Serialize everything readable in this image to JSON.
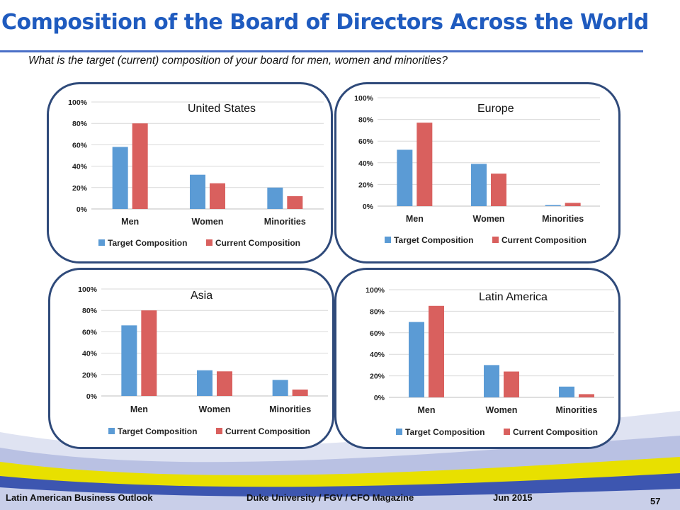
{
  "slide": {
    "title": "Composition of the Board of Directors Across the World",
    "subtitle": "What is the target (current) composition of your board for men, women and minorities?"
  },
  "colors": {
    "target": "#5b9bd5",
    "current": "#d9605e",
    "grid": "#d9d9d9",
    "frame": "#2f4a7a"
  },
  "legend": [
    "Target Composition",
    "Current Composition"
  ],
  "chart_data": [
    {
      "type": "bar",
      "title": "United States",
      "categories": [
        "Men",
        "Women",
        "Minorities"
      ],
      "series": [
        {
          "name": "Target Composition",
          "values": [
            58,
            32,
            20
          ]
        },
        {
          "name": "Current Composition",
          "values": [
            80,
            24,
            12
          ]
        }
      ],
      "yticks": [
        "0%",
        "20%",
        "40%",
        "60%",
        "80%",
        "100%"
      ],
      "ylim": [
        0,
        100
      ],
      "grid": true,
      "legend_position": "bottom"
    },
    {
      "type": "bar",
      "title": "Europe",
      "categories": [
        "Men",
        "Women",
        "Minorities"
      ],
      "series": [
        {
          "name": "Target Composition",
          "values": [
            52,
            39,
            1
          ]
        },
        {
          "name": "Current Composition",
          "values": [
            77,
            30,
            3
          ]
        }
      ],
      "yticks": [
        "0%",
        "20%",
        "40%",
        "60%",
        "80%",
        "100%"
      ],
      "ylim": [
        0,
        100
      ],
      "grid": true,
      "legend_position": "bottom"
    },
    {
      "type": "bar",
      "title": "Asia",
      "categories": [
        "Men",
        "Women",
        "Minorities"
      ],
      "series": [
        {
          "name": "Target Composition",
          "values": [
            66,
            24,
            15
          ]
        },
        {
          "name": "Current Composition",
          "values": [
            80,
            23,
            6
          ]
        }
      ],
      "yticks": [
        "0%",
        "20%",
        "40%",
        "60%",
        "80%",
        "100%"
      ],
      "ylim": [
        0,
        100
      ],
      "grid": true,
      "legend_position": "bottom"
    },
    {
      "type": "bar",
      "title": "Latin America",
      "categories": [
        "Men",
        "Women",
        "Minorities"
      ],
      "series": [
        {
          "name": "Target Composition",
          "values": [
            70,
            30,
            10
          ]
        },
        {
          "name": "Current Composition",
          "values": [
            85,
            24,
            3
          ]
        }
      ],
      "yticks": [
        "0%",
        "20%",
        "40%",
        "60%",
        "80%",
        "100%"
      ],
      "ylim": [
        0,
        100
      ],
      "grid": true,
      "legend_position": "bottom"
    }
  ],
  "footer": {
    "left": "Latin American Business Outlook",
    "center": "Duke University / FGV / CFO Magazine",
    "date": "Jun 2015",
    "page": "57"
  }
}
